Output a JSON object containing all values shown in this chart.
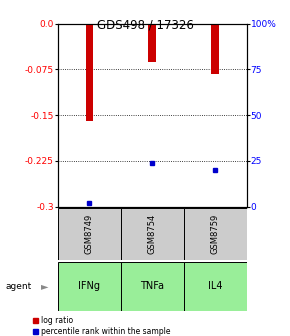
{
  "title": "GDS498 / 17326",
  "samples": [
    "GSM8749",
    "GSM8754",
    "GSM8759"
  ],
  "agents": [
    "IFNg",
    "TNFa",
    "IL4"
  ],
  "log_ratios": [
    -0.16,
    -0.063,
    -0.082
  ],
  "percentile_ranks": [
    2.0,
    24.0,
    20.0
  ],
  "ylim_left": [
    -0.3,
    0.0
  ],
  "yticks_left": [
    0.0,
    -0.075,
    -0.15,
    -0.225,
    -0.3
  ],
  "yticks_right": [
    100,
    75,
    50,
    25,
    0
  ],
  "bar_color": "#cc0000",
  "percentile_color": "#0000cc",
  "agent_bg_color": "#99ee99",
  "sample_bg_color": "#cccccc",
  "bar_width": 0.12,
  "legend_log_ratio_label": "log ratio",
  "legend_percentile_label": "percentile rank within the sample"
}
